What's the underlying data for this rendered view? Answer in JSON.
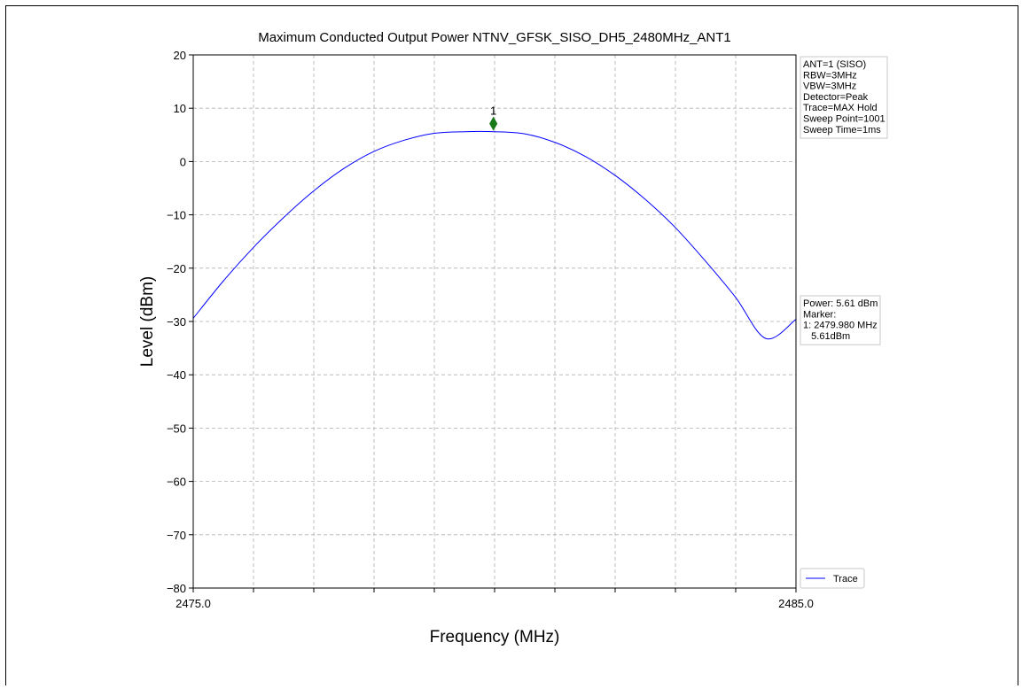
{
  "chart_data": {
    "type": "line",
    "title": "Maximum Conducted Output Power NTNV_GFSK_SISO_DH5_2480MHz_ANT1",
    "xlabel": "Frequency (MHz)",
    "ylabel": "Level (dBm)",
    "xlim": [
      2475.0,
      2485.0
    ],
    "ylim": [
      -80,
      20
    ],
    "x_tick_labels": [
      "2475.0",
      "2485.0"
    ],
    "y_ticks": [
      20,
      10,
      0,
      -10,
      -20,
      -30,
      -40,
      -50,
      -60,
      -70,
      -80
    ],
    "y_tick_labels": [
      "20",
      "10",
      "0",
      "−10",
      "−20",
      "−30",
      "−40",
      "−50",
      "−60",
      "−70",
      "−80"
    ],
    "grid": true,
    "series": [
      {
        "name": "Trace",
        "color": "#0000ff",
        "x": [
          2475.0,
          2475.5,
          2476.0,
          2476.5,
          2477.0,
          2477.5,
          2478.0,
          2478.5,
          2479.0,
          2479.5,
          2480.0,
          2480.5,
          2481.0,
          2481.5,
          2482.0,
          2482.5,
          2483.0,
          2483.5,
          2484.0,
          2484.5,
          2485.0
        ],
        "y": [
          -29.4,
          -22.4,
          -16.1,
          -10.5,
          -5.5,
          -1.3,
          1.9,
          4.0,
          5.3,
          5.6,
          5.6,
          5.2,
          3.6,
          1.0,
          -2.6,
          -7.1,
          -12.4,
          -18.7,
          -25.5,
          -33.2,
          -29.6
        ]
      }
    ],
    "marker": {
      "label": "1",
      "x": 2479.98,
      "y": 7.1,
      "color": "#1a7a1a"
    },
    "info_box_top": [
      "ANT=1 (SISO)",
      "RBW=3MHz",
      "VBW=3MHz",
      "Detector=Peak",
      "Trace=MAX Hold",
      "Sweep Point=1001",
      "Sweep Time=1ms"
    ],
    "info_box_mid": [
      "Power: 5.61 dBm",
      "Marker:",
      "1: 2479.980 MHz",
      "   5.61dBm"
    ],
    "legend": {
      "entries": [
        "Trace"
      ],
      "placement": "lower-right"
    }
  }
}
